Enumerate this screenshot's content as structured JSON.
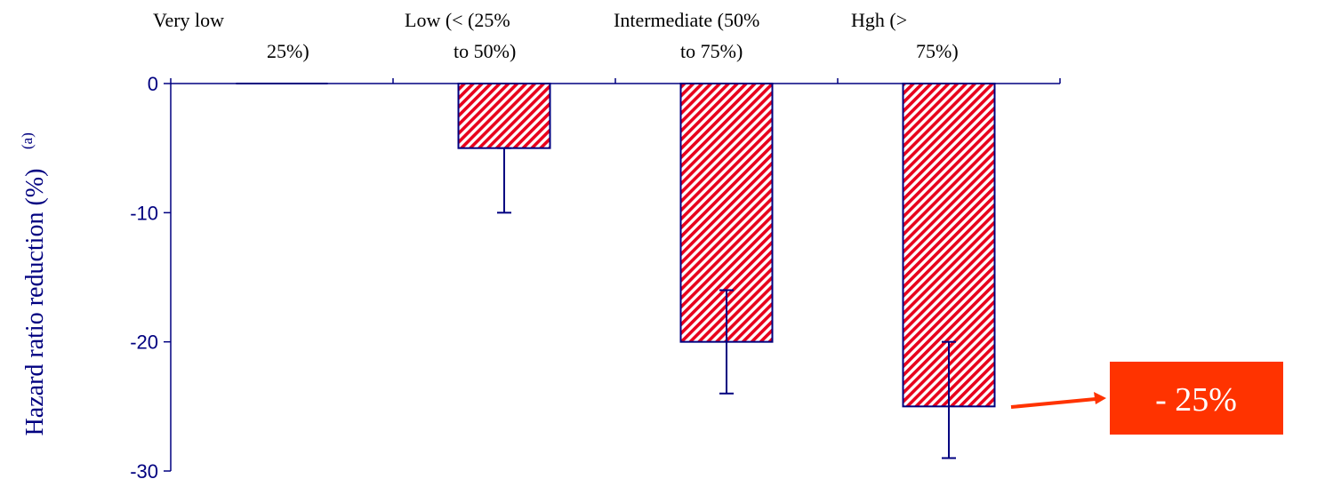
{
  "chart_data": {
    "type": "bar",
    "ylabel": "Hazard ratio reduction (%)",
    "ylabel_superscript": "(a)",
    "ylim": [
      -30,
      0
    ],
    "yticks": [
      "0",
      "-10",
      "-20",
      "-30"
    ],
    "ytick_values": [
      0,
      -10,
      -20,
      -30
    ],
    "categories": [
      {
        "line1": "Very low",
        "line2": "25%)"
      },
      {
        "line1": "Low (< (25%",
        "line2": "to 50%)"
      },
      {
        "line1": "Intermediate (50%",
        "line2": "to 75%)"
      },
      {
        "line1": "Hgh (>",
        "line2": "75%)"
      }
    ],
    "values": [
      0,
      -5,
      -20,
      -25
    ],
    "error_low": [
      0,
      -10,
      -24,
      -29
    ],
    "error_high": [
      0,
      -5,
      -16,
      -20
    ],
    "grid": false,
    "colors": {
      "axis": "#000080",
      "bar_stripe": "#e8001c",
      "bar_edge": "#000080",
      "callout": "#ff3300"
    },
    "annotation": {
      "text": "- 25%",
      "target_category_index": 3
    }
  }
}
